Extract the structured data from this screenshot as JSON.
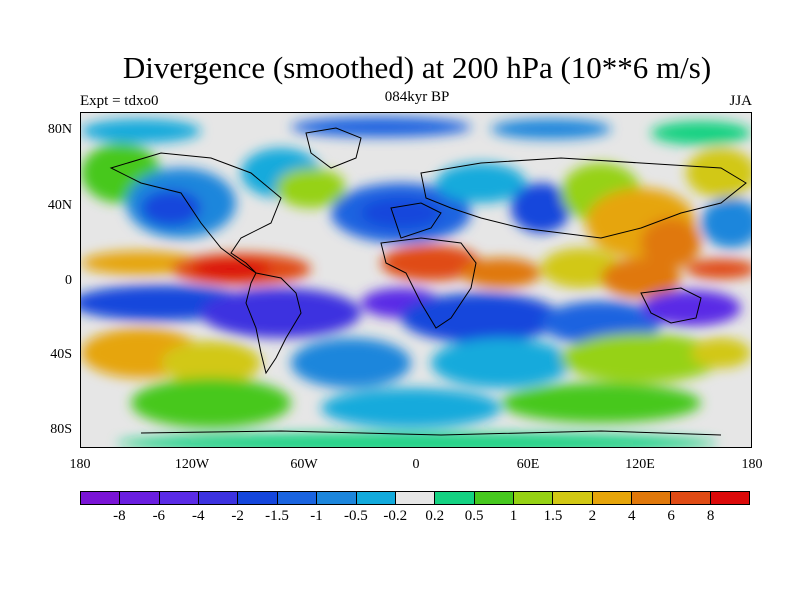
{
  "title": "Divergence (smoothed) at 200 hPa (10**6 m/s)",
  "subtitle": "084kyr BP",
  "left_label": "Expt = tdxo0",
  "right_label": "JJA",
  "lat_ticks": [
    "80N",
    "40N",
    "0",
    "40S",
    "80S"
  ],
  "lon_ticks": [
    "180",
    "120W",
    "60W",
    "0",
    "60E",
    "120E",
    "180"
  ],
  "colorbar": {
    "colors": [
      "#7a14d6",
      "#6a1ee0",
      "#5a2be6",
      "#3c32e0",
      "#1446dc",
      "#1a64e0",
      "#1c86dc",
      "#12aadc",
      "#e6e6e6",
      "#14d282",
      "#46c81e",
      "#96d214",
      "#d2c814",
      "#e6a50a",
      "#e0780a",
      "#e04b14",
      "#dc0a0a"
    ],
    "labels": [
      "-8",
      "-6",
      "-4",
      "-2",
      "-1.5",
      "-1",
      "-0.5",
      "-0.2",
      "0.2",
      "0.5",
      "1",
      "1.5",
      "2",
      "4",
      "6",
      "8"
    ]
  }
}
